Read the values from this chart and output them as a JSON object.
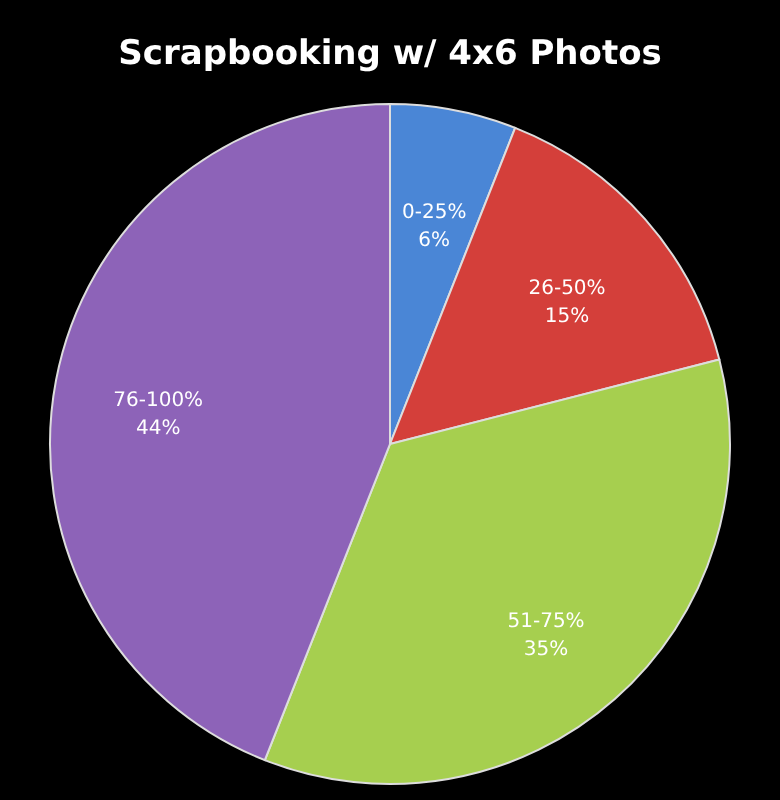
{
  "chart_data": {
    "type": "pie",
    "title": "Scrapbooking w/ 4x6 Photos",
    "categories": [
      "0-25%",
      "26-50%",
      "51-75%",
      "76-100%"
    ],
    "values": [
      6,
      15,
      35,
      44
    ],
    "value_labels": [
      "6%",
      "15%",
      "35%",
      "44%"
    ],
    "colors": [
      "#4a86d6",
      "#d43f3a",
      "#a6cf4f",
      "#8d63b8"
    ],
    "legend": false
  }
}
